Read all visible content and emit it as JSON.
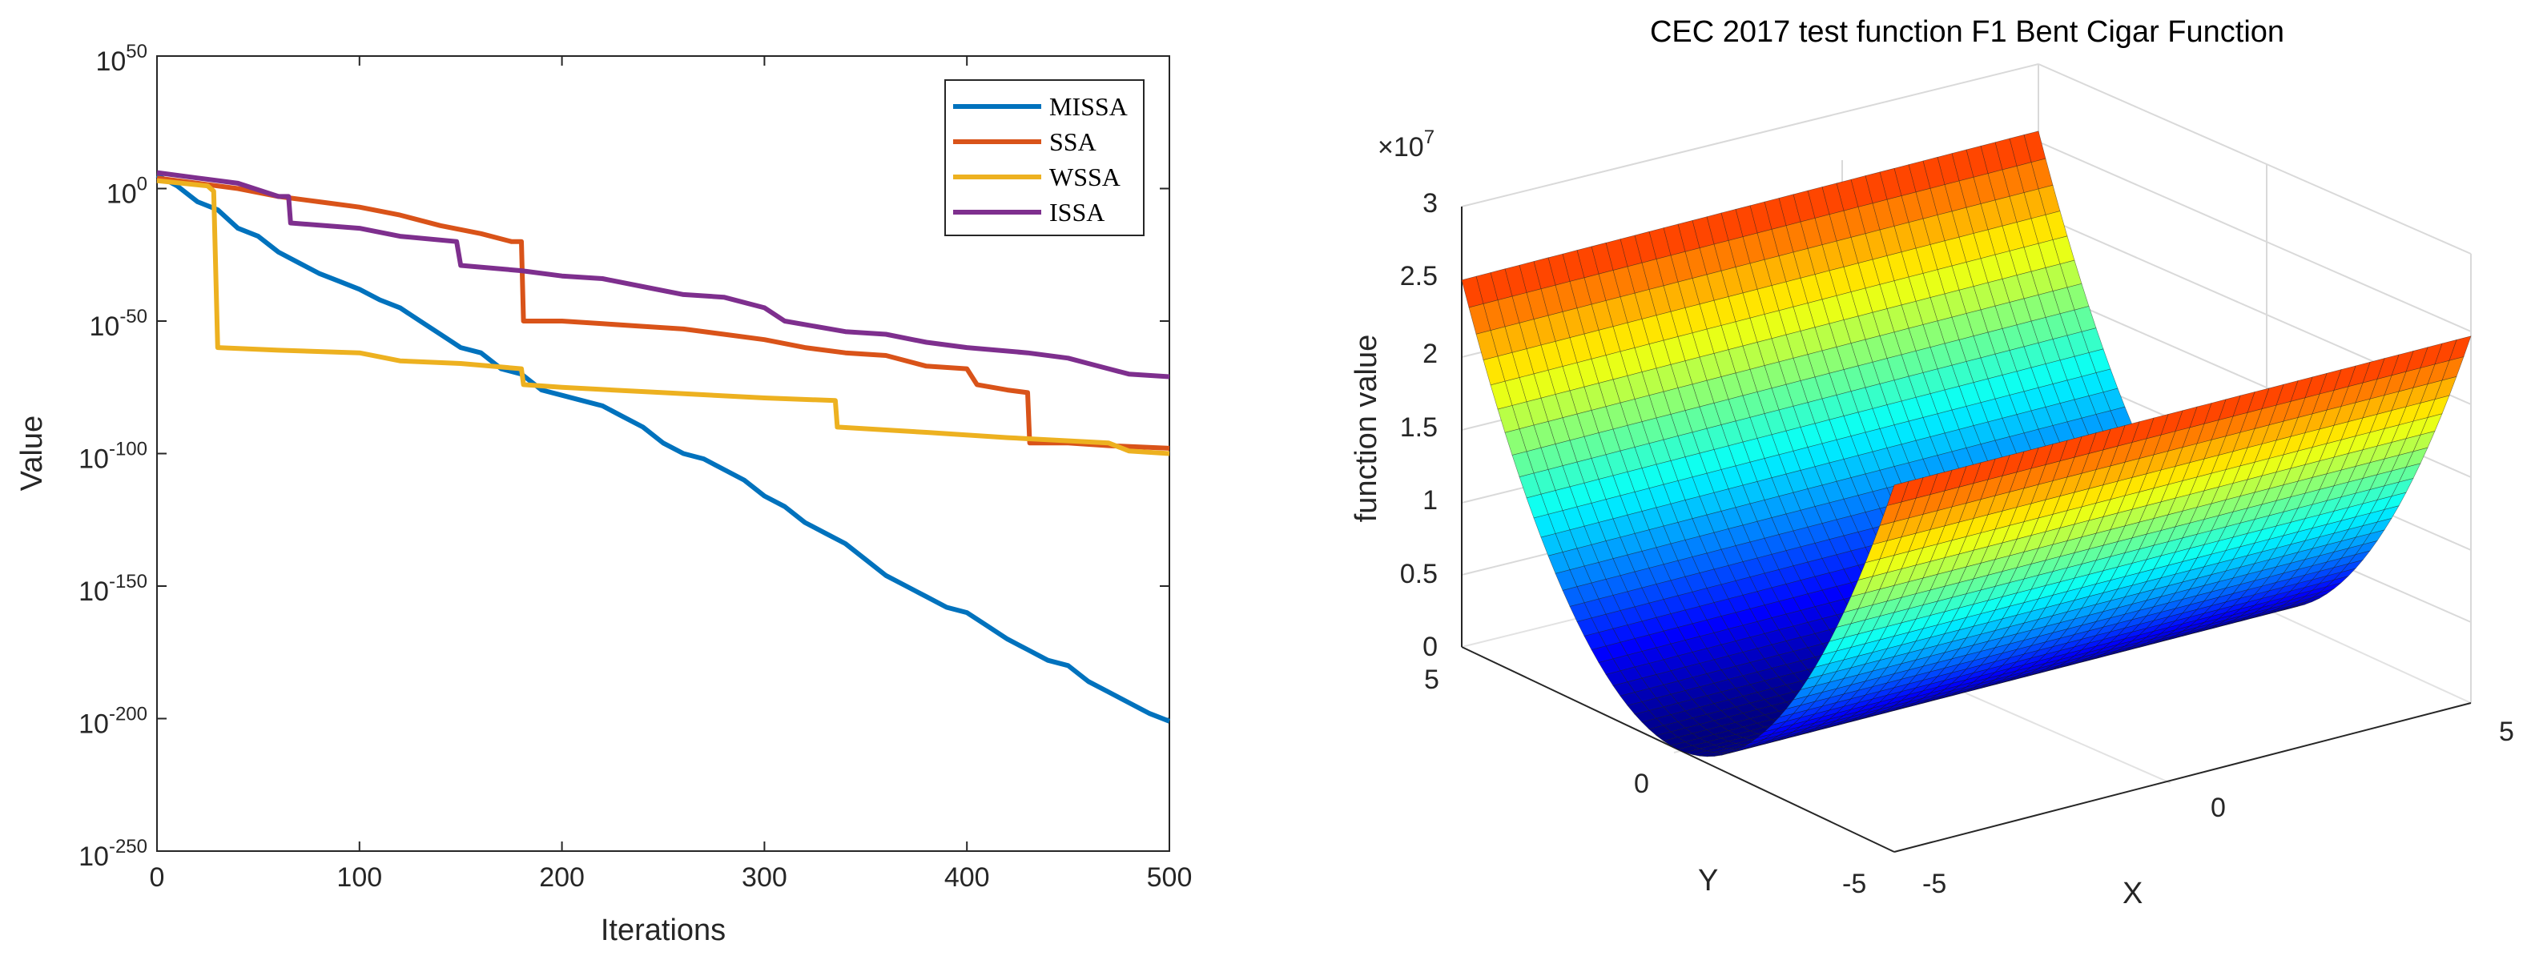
{
  "chart_data": [
    {
      "type": "line",
      "title": "",
      "xlabel": "Iterations",
      "ylabel": "Value",
      "yscale": "log",
      "xlim": [
        0,
        500
      ],
      "ylim_exp": [
        -250,
        50
      ],
      "x_ticks": [
        0,
        100,
        200,
        300,
        400,
        500
      ],
      "y_ticks": [
        {
          "base": "10",
          "exp": "50",
          "value": 50
        },
        {
          "base": "10",
          "exp": "0",
          "value": 0
        },
        {
          "base": "10",
          "exp": "-50",
          "value": -50
        },
        {
          "base": "10",
          "exp": "-100",
          "value": -100
        },
        {
          "base": "10",
          "exp": "-150",
          "value": -150
        },
        {
          "base": "10",
          "exp": "-200",
          "value": -200
        },
        {
          "base": "10",
          "exp": "-250",
          "value": -250
        }
      ],
      "legend_position": "top-right",
      "series": [
        {
          "name": "MISSA",
          "color": "#0072BD",
          "points": [
            [
              0,
              5
            ],
            [
              10,
              1
            ],
            [
              20,
              -5
            ],
            [
              30,
              -8
            ],
            [
              40,
              -15
            ],
            [
              50,
              -18
            ],
            [
              60,
              -24
            ],
            [
              70,
              -28
            ],
            [
              80,
              -32
            ],
            [
              90,
              -35
            ],
            [
              100,
              -38
            ],
            [
              110,
              -42
            ],
            [
              120,
              -45
            ],
            [
              130,
              -50
            ],
            [
              140,
              -55
            ],
            [
              150,
              -60
            ],
            [
              160,
              -62
            ],
            [
              170,
              -68
            ],
            [
              180,
              -70
            ],
            [
              190,
              -76
            ],
            [
              200,
              -78
            ],
            [
              210,
              -80
            ],
            [
              220,
              -82
            ],
            [
              230,
              -86
            ],
            [
              240,
              -90
            ],
            [
              250,
              -96
            ],
            [
              260,
              -100
            ],
            [
              270,
              -102
            ],
            [
              280,
              -106
            ],
            [
              290,
              -110
            ],
            [
              300,
              -116
            ],
            [
              310,
              -120
            ],
            [
              320,
              -126
            ],
            [
              330,
              -130
            ],
            [
              340,
              -134
            ],
            [
              350,
              -140
            ],
            [
              360,
              -146
            ],
            [
              370,
              -150
            ],
            [
              380,
              -154
            ],
            [
              390,
              -158
            ],
            [
              400,
              -160
            ],
            [
              410,
              -165
            ],
            [
              420,
              -170
            ],
            [
              430,
              -174
            ],
            [
              440,
              -178
            ],
            [
              450,
              -180
            ],
            [
              460,
              -186
            ],
            [
              470,
              -190
            ],
            [
              480,
              -194
            ],
            [
              490,
              -198
            ],
            [
              500,
              -201
            ]
          ]
        },
        {
          "name": "SSA",
          "color": "#D95319",
          "points": [
            [
              0,
              4
            ],
            [
              20,
              2
            ],
            [
              40,
              0
            ],
            [
              60,
              -3
            ],
            [
              80,
              -5
            ],
            [
              100,
              -7
            ],
            [
              120,
              -10
            ],
            [
              140,
              -14
            ],
            [
              160,
              -17
            ],
            [
              175,
              -20
            ],
            [
              180,
              -20
            ],
            [
              181,
              -50
            ],
            [
              200,
              -50
            ],
            [
              220,
              -51
            ],
            [
              240,
              -52
            ],
            [
              260,
              -53
            ],
            [
              280,
              -55
            ],
            [
              300,
              -57
            ],
            [
              320,
              -60
            ],
            [
              340,
              -62
            ],
            [
              360,
              -63
            ],
            [
              380,
              -67
            ],
            [
              400,
              -68
            ],
            [
              405,
              -74
            ],
            [
              420,
              -76
            ],
            [
              430,
              -77
            ],
            [
              431,
              -96
            ],
            [
              450,
              -96
            ],
            [
              470,
              -97
            ],
            [
              500,
              -98
            ]
          ]
        },
        {
          "name": "WSSA",
          "color": "#EDB120",
          "points": [
            [
              0,
              3
            ],
            [
              25,
              1
            ],
            [
              28,
              -1
            ],
            [
              30,
              -60
            ],
            [
              60,
              -61
            ],
            [
              100,
              -62
            ],
            [
              120,
              -65
            ],
            [
              150,
              -66
            ],
            [
              180,
              -68
            ],
            [
              181,
              -74
            ],
            [
              200,
              -75
            ],
            [
              250,
              -77
            ],
            [
              300,
              -79
            ],
            [
              335,
              -80
            ],
            [
              336,
              -90
            ],
            [
              380,
              -92
            ],
            [
              420,
              -94
            ],
            [
              470,
              -96
            ],
            [
              480,
              -99
            ],
            [
              500,
              -100
            ]
          ]
        },
        {
          "name": "ISSA",
          "color": "#7E2F8E",
          "points": [
            [
              0,
              6
            ],
            [
              20,
              4
            ],
            [
              40,
              2
            ],
            [
              60,
              -3
            ],
            [
              65,
              -3
            ],
            [
              66,
              -13
            ],
            [
              100,
              -15
            ],
            [
              120,
              -18
            ],
            [
              148,
              -20
            ],
            [
              150,
              -29
            ],
            [
              180,
              -31
            ],
            [
              200,
              -33
            ],
            [
              220,
              -34
            ],
            [
              240,
              -37
            ],
            [
              260,
              -40
            ],
            [
              280,
              -41
            ],
            [
              300,
              -45
            ],
            [
              310,
              -50
            ],
            [
              340,
              -54
            ],
            [
              360,
              -55
            ],
            [
              380,
              -58
            ],
            [
              400,
              -60
            ],
            [
              430,
              -62
            ],
            [
              450,
              -64
            ],
            [
              460,
              -66
            ],
            [
              470,
              -68
            ],
            [
              480,
              -70
            ],
            [
              500,
              -71
            ]
          ]
        }
      ]
    },
    {
      "type": "surface",
      "title": "CEC 2017 test function F1 Bent Cigar Function",
      "xlabel": "X",
      "ylabel": "Y",
      "zlabel": "function value",
      "z_multiplier": "×10",
      "z_multiplier_exp": "7",
      "z_ticks": [
        "0",
        "0.5",
        "1",
        "1.5",
        "2",
        "2.5",
        "3"
      ],
      "x_ticks": [
        "-5",
        "0",
        "5"
      ],
      "y_ticks": [
        "-5",
        "0",
        "5"
      ],
      "x_range": [
        -5,
        5
      ],
      "y_range": [
        -5,
        5
      ],
      "z_range": [
        0,
        3
      ]
    }
  ]
}
